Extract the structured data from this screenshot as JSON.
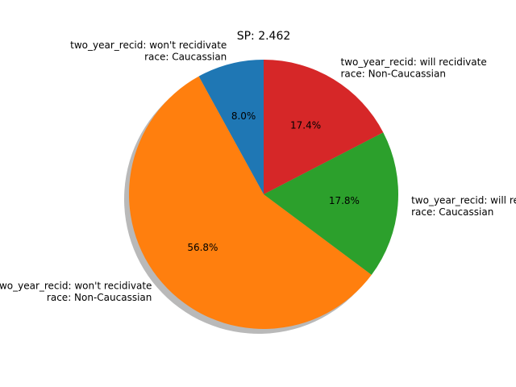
{
  "chart_data": {
    "type": "pie",
    "title": "SP: 2.462",
    "start_angle_deg": 90,
    "direction": "counterclockwise",
    "shadow": true,
    "slices": [
      {
        "label_lines": [
          "two_year_recid: won't recidivate",
          "race: Caucassian"
        ],
        "value": 8.0,
        "pct_label": "8.0%",
        "color": "#1f77b4"
      },
      {
        "label_lines": [
          "two_year_recid: won't recidivate",
          "race: Non-Caucassian"
        ],
        "value": 56.8,
        "pct_label": "56.8%",
        "color": "#ff7f0e"
      },
      {
        "label_lines": [
          "two_year_recid: will recidivate",
          "race: Caucassian"
        ],
        "value": 17.8,
        "pct_label": "17.8%",
        "color": "#2ca02c"
      },
      {
        "label_lines": [
          "two_year_recid: will recidivate",
          "race: Non-Caucassian"
        ],
        "value": 17.4,
        "pct_label": "17.4%",
        "color": "#d62728"
      }
    ]
  }
}
